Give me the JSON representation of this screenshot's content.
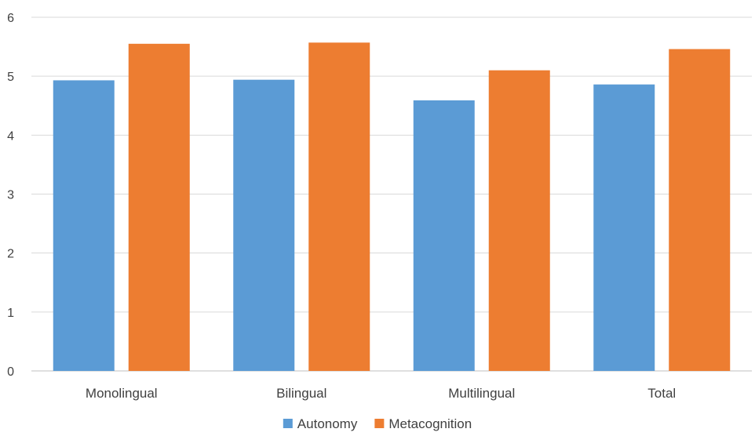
{
  "chart_data": {
    "type": "bar",
    "categories": [
      "Monolingual",
      "Bilingual",
      "Multilingual",
      "Total"
    ],
    "series": [
      {
        "name": "Autonomy",
        "color": "#5B9BD5",
        "values": [
          4.93,
          4.94,
          4.59,
          4.86
        ]
      },
      {
        "name": "Metacognition",
        "color": "#ED7D31",
        "values": [
          5.55,
          5.57,
          5.1,
          5.46
        ]
      }
    ],
    "ylim": [
      0,
      6
    ],
    "yticks": [
      "0",
      "1",
      "2",
      "3",
      "4",
      "5",
      "6"
    ],
    "grid": true,
    "legend_position": "bottom",
    "title": "",
    "xlabel": "",
    "ylabel": ""
  }
}
